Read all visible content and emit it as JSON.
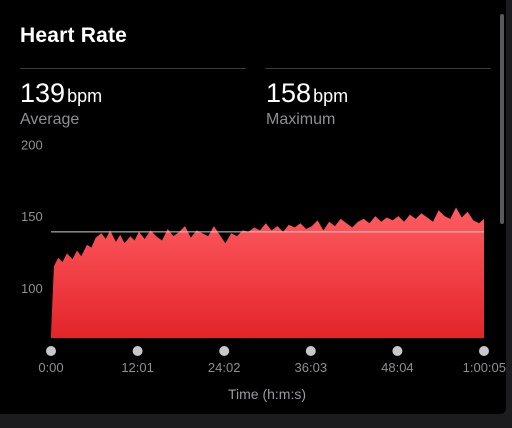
{
  "title": "Heart Rate",
  "stats": [
    {
      "value": "139",
      "unit": "bpm",
      "label": "Average"
    },
    {
      "value": "158",
      "unit": "bpm",
      "label": "Maximum"
    }
  ],
  "colors": {
    "fill_top": "#ff5c61",
    "fill_bottom": "#e3242b",
    "reference_line": "#cfcfcf",
    "dot": "#c7c7cc"
  },
  "chart_data": {
    "type": "area",
    "title": "",
    "xlabel": "Time (h:m:s)",
    "ylabel": "",
    "x_tick_labels": [
      "0:00",
      "12:01",
      "24:02",
      "36:03",
      "48:04",
      "1:00:05"
    ],
    "x_tick_minutes": [
      0,
      12.017,
      24.033,
      36.05,
      48.067,
      60.083
    ],
    "y_ticks": [
      100,
      150,
      200
    ],
    "ylim": [
      65,
      210
    ],
    "reference_line": {
      "value": 139,
      "meaning": "Average"
    },
    "series": [
      {
        "x_minutes": [
          0,
          0.4,
          1,
          1.6,
          2.2,
          3,
          3.6,
          4.2,
          5,
          5.6,
          6.2,
          7,
          7.6,
          8.2,
          9,
          9.6,
          10.2,
          11,
          11.6,
          12.2,
          13,
          13.8,
          14.6,
          15.4,
          16.2,
          17,
          17.8,
          18.6,
          19.4,
          20.2,
          21,
          21.8,
          22.6,
          23.4,
          24.2,
          25,
          25.8,
          26.6,
          27.4,
          28.2,
          29,
          29.8,
          30.6,
          31.4,
          32.2,
          33,
          33.8,
          34.6,
          35.4,
          36.2,
          37,
          37.8,
          38.6,
          39.4,
          40.2,
          41,
          41.8,
          42.6,
          43.4,
          44.2,
          45,
          45.8,
          46.6,
          47.4,
          48.2,
          49,
          49.8,
          50.6,
          51.4,
          52.2,
          53,
          53.8,
          54.6,
          55.4,
          56.2,
          57,
          57.8,
          58.6,
          59.4,
          60.08
        ],
        "values": [
          68,
          115,
          121,
          118,
          124,
          120,
          126,
          122,
          130,
          128,
          135,
          138,
          134,
          140,
          132,
          137,
          131,
          136,
          133,
          139,
          134,
          140,
          136,
          133,
          141,
          136,
          139,
          143,
          135,
          140,
          138,
          136,
          143,
          137,
          131,
          138,
          136,
          140,
          139,
          142,
          140,
          145,
          140,
          143,
          139,
          144,
          142,
          145,
          141,
          143,
          147,
          140,
          146,
          143,
          148,
          145,
          142,
          146,
          148,
          145,
          150,
          146,
          149,
          147,
          150,
          146,
          151,
          148,
          152,
          149,
          146,
          154,
          150,
          148,
          156,
          149,
          153,
          147,
          145,
          148
        ]
      }
    ]
  }
}
